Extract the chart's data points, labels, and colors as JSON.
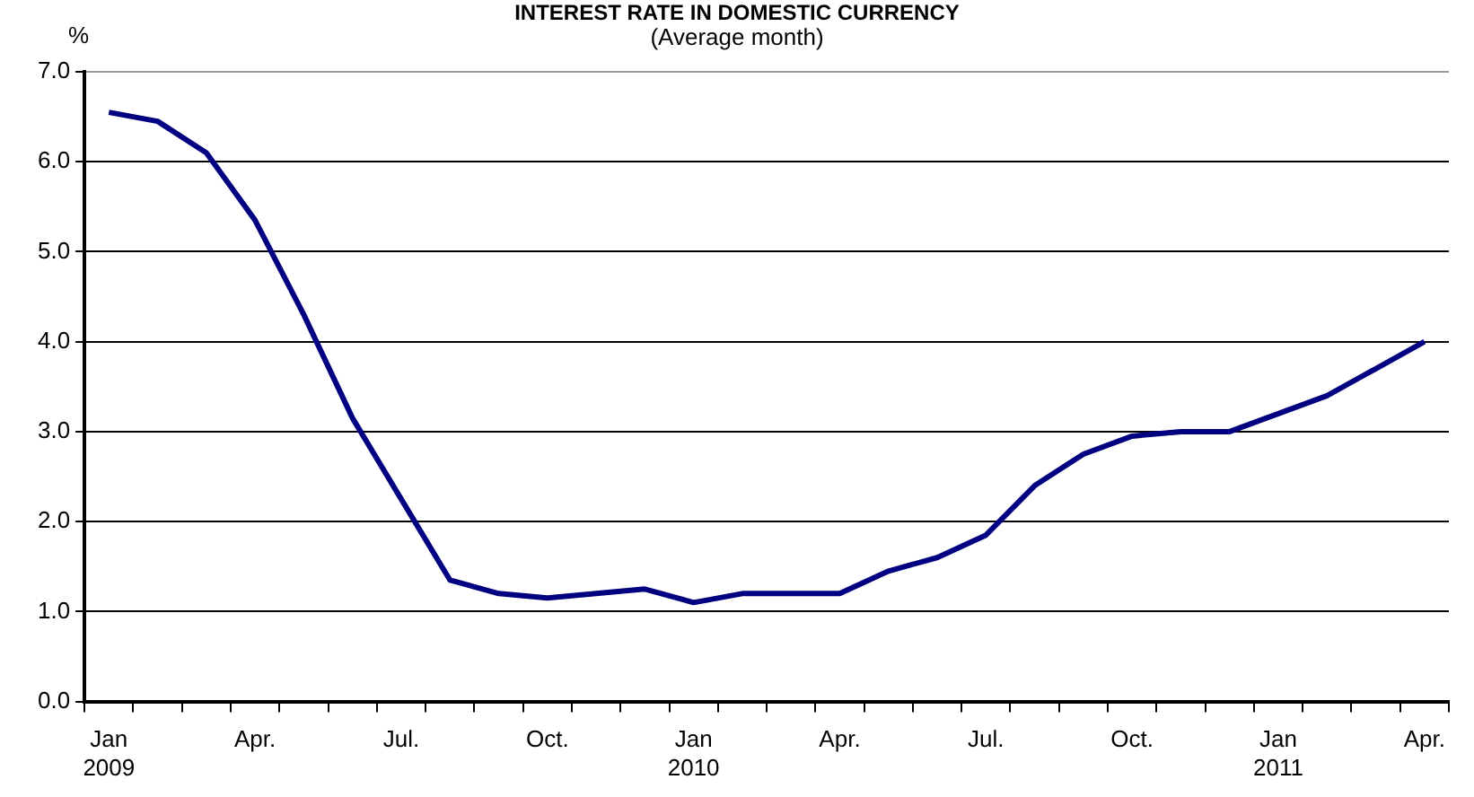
{
  "chart_data": {
    "type": "line",
    "title": "INTEREST RATE IN DOMESTIC CURRENCY",
    "subtitle": "(Average month)",
    "ylabel": "%",
    "categories": [
      "Jan\n2009",
      null,
      null,
      "Apr.",
      null,
      null,
      "Jul.",
      null,
      null,
      "Oct.",
      null,
      null,
      "Jan\n2010",
      null,
      null,
      "Apr.",
      null,
      null,
      "Jul.",
      null,
      null,
      "Oct.",
      null,
      null,
      "Jan\n2011",
      null,
      null,
      "Apr."
    ],
    "series": [
      {
        "color": "#000080",
        "values": [
          6.55,
          6.45,
          6.1,
          5.35,
          4.3,
          3.15,
          2.25,
          1.35,
          1.2,
          1.15,
          1.2,
          1.25,
          1.1,
          1.2,
          1.2,
          1.2,
          1.45,
          1.6,
          1.85,
          2.4,
          2.75,
          2.95,
          3.0,
          3.0,
          3.2,
          3.4,
          3.7,
          4.0
        ]
      }
    ],
    "ylim": [
      0,
      7
    ],
    "yticks": [
      {
        "value": 0,
        "label": "0.0"
      },
      {
        "value": 1,
        "label": "1.0"
      },
      {
        "value": 2,
        "label": "2.0"
      },
      {
        "value": 3,
        "label": "3.0"
      },
      {
        "value": 4,
        "label": "4.0"
      },
      {
        "value": 5,
        "label": "5.0"
      },
      {
        "value": 6,
        "label": "6.0"
      },
      {
        "value": 7,
        "label": "7.0"
      }
    ],
    "grid": "y",
    "legend": false,
    "marker": "none",
    "line_style": "solid"
  }
}
